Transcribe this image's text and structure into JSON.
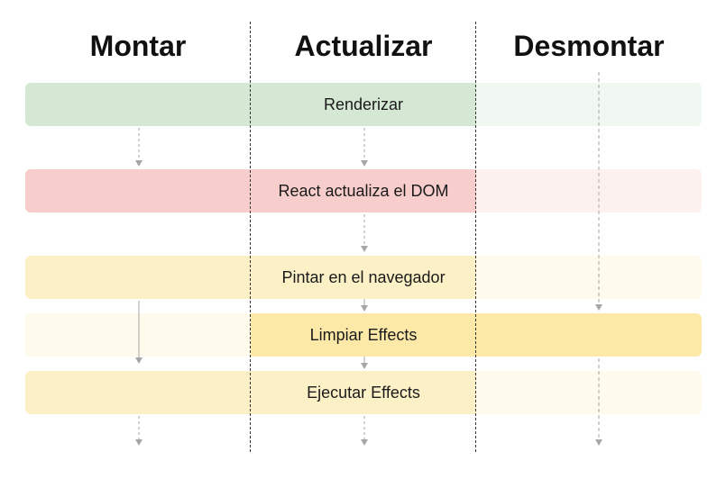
{
  "columns": {
    "mount": "Montar",
    "update": "Actualizar",
    "unmount": "Desmontar"
  },
  "stages": {
    "render": "Renderizar",
    "dom": "React actualiza el DOM",
    "paint": "Pintar en el navegador",
    "cleanup": "Limpiar Effects",
    "run": "Ejecutar Effects"
  },
  "colors": {
    "render_solid": "#d5e8d4",
    "render_faded": "#f1f8f1",
    "dom_solid": "#f8cecc",
    "dom_faded": "#fdf1f0",
    "paint_solid": "#fcf0c6",
    "paint_faded": "#fefaec",
    "cleanup_solid": "#fce9a8",
    "cleanup_faded": "#fefaec",
    "run_solid": "#fcf0c6",
    "run_faded": "#fefaec"
  }
}
